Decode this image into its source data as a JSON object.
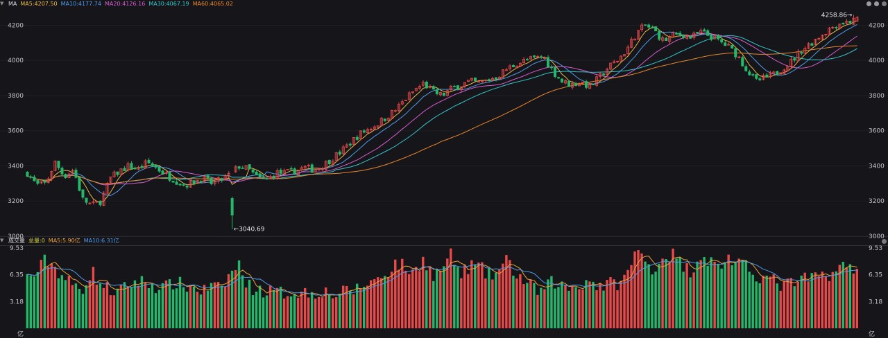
{
  "price_panel": {
    "indicator_name": "MA",
    "ma_labels": [
      {
        "text": "MA5:4207.50",
        "color": "#e8b84a"
      },
      {
        "text": "MA10:4177.74",
        "color": "#4f9ae8"
      },
      {
        "text": "MA20:4126.16",
        "color": "#d55cd0"
      },
      {
        "text": "MA30:4067.19",
        "color": "#33c4c9"
      },
      {
        "text": "MA60:4065.02",
        "color": "#e8862c"
      }
    ]
  },
  "volume_panel": {
    "indicator_name": "成交量",
    "vol_labels": [
      {
        "text": "总量:0",
        "color": "#d4d44a"
      },
      {
        "text": "MA5:5.90亿",
        "color": "#e8a23c"
      },
      {
        "text": "MA10:6.31亿",
        "color": "#4f9ae8"
      }
    ]
  },
  "window_controls": [
    "minus-icon",
    "plus-icon",
    "gear-icon"
  ],
  "chart_data": [
    {
      "type": "candlestick",
      "ylim": [
        3000,
        4300
      ],
      "y_ticks": [
        3000,
        3200,
        3400,
        3600,
        3800,
        4000,
        4200
      ],
      "annotations": [
        {
          "text": "←3040.69",
          "value": 3040.69,
          "kind": "low"
        },
        {
          "text": "4258.86→",
          "value": 4258.86,
          "kind": "high"
        }
      ],
      "colors": {
        "up": "#e84a4a",
        "down": "#26b86a"
      },
      "close_path": [
        3360,
        3290,
        3300,
        3420,
        3340,
        3380,
        3210,
        3175,
        3200,
        3330,
        3370,
        3400,
        3380,
        3420,
        3390,
        3350,
        3320,
        3290,
        3310,
        3330,
        3300,
        3320,
        3350,
        3400,
        3380,
        3330,
        3320,
        3360,
        3360,
        3370,
        3390,
        3380,
        3400,
        3440,
        3480,
        3530,
        3580,
        3610,
        3640,
        3680,
        3720,
        3780,
        3830,
        3870,
        3820,
        3800,
        3840,
        3860,
        3880,
        3870,
        3890,
        3910,
        3950,
        3980,
        4000,
        4010,
        4020,
        3940,
        3880,
        3860,
        3880,
        3850,
        3900,
        3960,
        4000,
        4060,
        4150,
        4200,
        4170,
        4110,
        4140,
        4150,
        4130,
        4160,
        4140,
        4110,
        4080,
        4030,
        3950,
        3880,
        3900,
        3920,
        3960,
        4000,
        4060,
        4100,
        4140,
        4180,
        4210,
        4220,
        4230
      ],
      "ma_series": [
        {
          "name": "MA5",
          "value": 4207.5,
          "color": "#e8b84a"
        },
        {
          "name": "MA10",
          "value": 4177.74,
          "color": "#4f9ae8"
        },
        {
          "name": "MA20",
          "value": 4126.16,
          "color": "#d55cd0"
        },
        {
          "name": "MA30",
          "value": 4067.19,
          "color": "#33c4c9"
        },
        {
          "name": "MA60",
          "value": 4065.02,
          "color": "#e8862c"
        }
      ]
    },
    {
      "type": "bar",
      "ylim": [
        0,
        9.53
      ],
      "y_ticks": [
        {
          "value": 9.53,
          "label": "9.53"
        },
        {
          "value": 6.35,
          "label": "6.35"
        },
        {
          "value": 3.18,
          "label": "3.18"
        }
      ],
      "unit": "亿",
      "volume_path": [
        6.0,
        6.5,
        8.2,
        7.2,
        6.0,
        5.0,
        4.8,
        6.8,
        5.2,
        4.5,
        4.3,
        5.2,
        5.6,
        5.4,
        5.0,
        4.8,
        5.5,
        5.0,
        4.9,
        4.4,
        5.0,
        4.5,
        6.5,
        7.5,
        5.0,
        4.6,
        4.4,
        4.2,
        4.2,
        4.4,
        4.3,
        4.2,
        4.5,
        4.0,
        4.1,
        4.5,
        4.7,
        5.5,
        5.8,
        6.6,
        7.8,
        7.2,
        6.5,
        8.5,
        6.0,
        7.2,
        8.7,
        6.2,
        7.5,
        7.3,
        6.2,
        6.6,
        8.0,
        6.5,
        5.5,
        4.6,
        4.4,
        5.6,
        5.0,
        4.8,
        5.2,
        5.8,
        5.0,
        5.2,
        5.4,
        6.0,
        9.3,
        8.0,
        7.0,
        8.5,
        8.8,
        7.5,
        6.8,
        8.8,
        8.0,
        7.2,
        8.5,
        7.5,
        7.2,
        6.4,
        6.0,
        5.6,
        5.0,
        5.4,
        5.6,
        6.0,
        6.2,
        6.5,
        7.0,
        7.4,
        7.2
      ]
    }
  ]
}
